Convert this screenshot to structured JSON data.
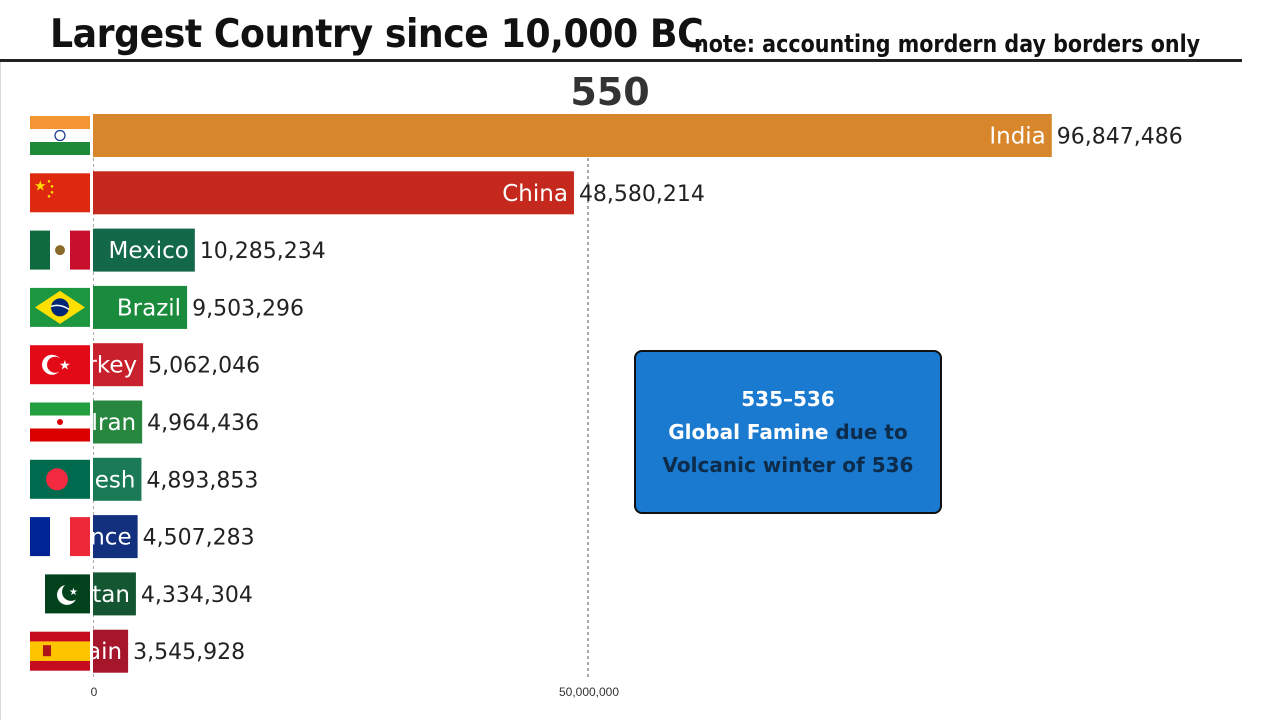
{
  "header": {
    "title": "Largest Country since 10,000 BC",
    "note": "note: accounting mordern day borders only"
  },
  "year": "550",
  "event": {
    "years": "535–536",
    "line1_highlight": "Global Famine",
    "line1_rest": " due to",
    "line2": "Volcanic winter of 536"
  },
  "chart_data": {
    "type": "bar",
    "orientation": "horizontal",
    "title": "Largest Country since 10,000 BC",
    "xlim": [
      0,
      100000000
    ],
    "ticks": [
      {
        "value": 0,
        "label": "0"
      },
      {
        "value": 50000000,
        "label": "50,000,000"
      }
    ],
    "grid": true,
    "bars": [
      {
        "label": "India",
        "value_label": "96,847,486",
        "value": 96847486,
        "color": "#d8862c",
        "flag": "india-flag"
      },
      {
        "label": "China",
        "value_label": "48,580,214",
        "value": 48580214,
        "color": "#c5281c",
        "flag": "china-flag"
      },
      {
        "label": "Mexico",
        "value_label": "10,285,234",
        "value": 10285234,
        "color": "#13684a",
        "flag": "mexico-flag"
      },
      {
        "label": "Brazil",
        "value_label": "9,503,296",
        "value": 9503296,
        "color": "#1a8a3c",
        "flag": "brazil-flag"
      },
      {
        "label": "rkey",
        "value_label": "5,062,046",
        "value": 5062046,
        "color": "#c8202c",
        "flag": "turkey-flag"
      },
      {
        "label": "Iran",
        "value_label": "4,964,436",
        "value": 4964436,
        "color": "#27873f",
        "flag": "iran-flag"
      },
      {
        "label": "lesh",
        "value_label": "4,893,853",
        "value": 4893853,
        "color": "#1a7a55",
        "flag": "bangladesh-flag"
      },
      {
        "label": "nce",
        "value_label": "4,507,283",
        "value": 4507283,
        "color": "#12307e",
        "flag": "france-flag"
      },
      {
        "label": "tan",
        "value_label": "4,334,304",
        "value": 4334304,
        "color": "#145532",
        "flag": "pakistan-flag"
      },
      {
        "label": "ain",
        "value_label": "3,545,928",
        "value": 3545928,
        "color": "#a6162a",
        "flag": "spain-flag"
      }
    ]
  }
}
